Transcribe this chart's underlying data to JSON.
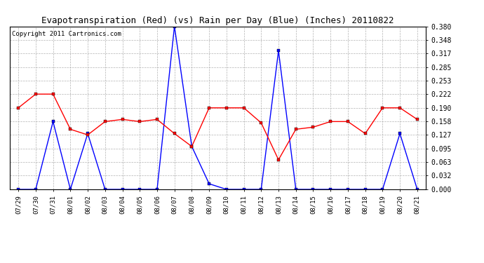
{
  "title": "Evapotranspiration (Red) (vs) Rain per Day (Blue) (Inches) 20110822",
  "copyright": "Copyright 2011 Cartronics.com",
  "labels": [
    "07/29",
    "07/30",
    "07/31",
    "08/01",
    "08/02",
    "08/03",
    "08/04",
    "08/05",
    "08/06",
    "08/07",
    "08/08",
    "08/09",
    "08/10",
    "08/11",
    "08/12",
    "08/13",
    "08/14",
    "08/15",
    "08/16",
    "08/17",
    "08/18",
    "08/19",
    "08/20",
    "08/21"
  ],
  "blue_rain": [
    0.0,
    0.0,
    0.158,
    0.0,
    0.13,
    0.0,
    0.0,
    0.0,
    0.0,
    0.38,
    0.1,
    0.013,
    0.0,
    0.0,
    0.0,
    0.323,
    0.0,
    0.0,
    0.0,
    0.0,
    0.0,
    0.0,
    0.13,
    0.0
  ],
  "red_et": [
    0.19,
    0.222,
    0.222,
    0.14,
    0.127,
    0.158,
    0.163,
    0.158,
    0.163,
    0.13,
    0.1,
    0.19,
    0.19,
    0.19,
    0.155,
    0.069,
    0.14,
    0.145,
    0.158,
    0.158,
    0.13,
    0.19,
    0.19,
    0.163
  ],
  "ylim": [
    0.0,
    0.38
  ],
  "yticks": [
    0.0,
    0.032,
    0.063,
    0.095,
    0.127,
    0.158,
    0.19,
    0.222,
    0.253,
    0.285,
    0.317,
    0.348,
    0.38
  ],
  "blue_color": "#0000FF",
  "red_color": "#FF0000",
  "bg_color": "#FFFFFF",
  "grid_color": "#AAAAAA",
  "title_fontsize": 9,
  "copyright_fontsize": 6.5,
  "tick_fontsize": 6.5,
  "ytick_fontsize": 7
}
